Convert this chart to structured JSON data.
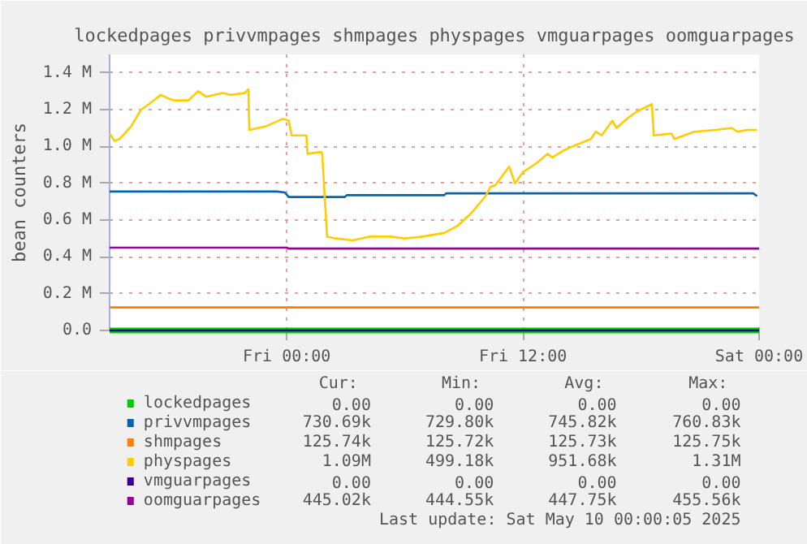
{
  "chart_data": {
    "type": "line",
    "title": "lockedpages privvmpages shmpages physpages vmguarpages oomguarpages",
    "ylabel": "bean counters",
    "xlim": [
      "2025-05-08T15:00",
      "2025-05-10T00:00"
    ],
    "xticks": [
      {
        "value": "2025-05-09T00:00",
        "label": "Fri 00:00"
      },
      {
        "value": "2025-05-09T12:00",
        "label": "Fri 12:00"
      },
      {
        "value": "2025-05-10T00:00",
        "label": "Sat 00:00"
      }
    ],
    "ylim": [
      0,
      1500000
    ],
    "yticks": [
      {
        "value": 0,
        "label": "0.0"
      },
      {
        "value": 200000,
        "label": "0.2 M"
      },
      {
        "value": 400000,
        "label": "0.4 M"
      },
      {
        "value": 600000,
        "label": "0.6 M"
      },
      {
        "value": 800000,
        "label": "0.8 M"
      },
      {
        "value": 1000000,
        "label": "1.0 M"
      },
      {
        "value": 1200000,
        "label": "1.2 M"
      },
      {
        "value": 1400000,
        "label": "1.4 M"
      }
    ],
    "grid": true,
    "legend": "bottom",
    "series": [
      {
        "name": "lockedpages",
        "color": "#00cc00",
        "x": [
          "2025-05-08T15:00",
          "2025-05-10T00:00"
        ],
        "values": [
          0,
          0
        ]
      },
      {
        "name": "privvmpages",
        "color": "#0066b3",
        "x": [
          "2025-05-08T15:00",
          "2025-05-08T23:30",
          "2025-05-08T23:54",
          "2025-05-09T00:06",
          "2025-05-09T02:57",
          "2025-05-09T03:03",
          "2025-05-09T08:00",
          "2025-05-09T08:06",
          "2025-05-09T23:42",
          "2025-05-09T23:54"
        ],
        "values": [
          755000,
          755000,
          750000,
          725000,
          725000,
          735000,
          735000,
          745000,
          745000,
          730000
        ]
      },
      {
        "name": "shmpages",
        "color": "#ff7f00",
        "x": [
          "2025-05-08T15:00",
          "2025-05-10T00:00"
        ],
        "values": [
          125000,
          125000
        ]
      },
      {
        "name": "physpages",
        "color": "#ffcc00",
        "x": [
          "2025-05-08T15:00",
          "2025-05-08T15:15",
          "2025-05-08T15:30",
          "2025-05-08T16:06",
          "2025-05-08T16:36",
          "2025-05-08T17:00",
          "2025-05-08T17:36",
          "2025-05-08T18:00",
          "2025-05-08T18:18",
          "2025-05-08T19:00",
          "2025-05-08T19:30",
          "2025-05-08T19:54",
          "2025-05-08T20:45",
          "2025-05-08T21:09",
          "2025-05-08T21:51",
          "2025-05-08T22:03",
          "2025-05-08T22:06",
          "2025-05-08T22:57",
          "2025-05-08T23:48",
          "2025-05-09T00:06",
          "2025-05-09T00:15",
          "2025-05-09T01:00",
          "2025-05-09T01:03",
          "2025-05-09T01:45",
          "2025-05-09T01:48",
          "2025-05-09T02:03",
          "2025-05-09T02:30",
          "2025-05-09T03:21",
          "2025-05-09T04:12",
          "2025-05-09T05:18",
          "2025-05-09T06:00",
          "2025-05-09T06:54",
          "2025-05-09T08:00",
          "2025-05-09T08:42",
          "2025-05-09T09:24",
          "2025-05-09T10:06",
          "2025-05-09T10:21",
          "2025-05-09T10:36",
          "2025-05-09T11:18",
          "2025-05-09T11:36",
          "2025-05-09T12:00",
          "2025-05-09T12:42",
          "2025-05-09T13:15",
          "2025-05-09T13:30",
          "2025-05-09T14:06",
          "2025-05-09T14:45",
          "2025-05-09T15:27",
          "2025-05-09T15:42",
          "2025-05-09T16:00",
          "2025-05-09T16:33",
          "2025-05-09T16:45",
          "2025-05-09T17:24",
          "2025-05-09T17:48",
          "2025-05-09T18:33",
          "2025-05-09T18:39",
          "2025-05-09T19:33",
          "2025-05-09T19:42",
          "2025-05-09T20:42",
          "2025-05-09T21:48",
          "2025-05-09T22:36",
          "2025-05-09T22:54",
          "2025-05-09T23:24",
          "2025-05-09T23:54"
        ],
        "values": [
          1070000,
          1030000,
          1040000,
          1110000,
          1200000,
          1230000,
          1280000,
          1260000,
          1250000,
          1250000,
          1300000,
          1270000,
          1290000,
          1280000,
          1290000,
          1310000,
          1090000,
          1110000,
          1150000,
          1140000,
          1060000,
          1060000,
          960000,
          970000,
          960000,
          510000,
          500000,
          490000,
          510000,
          510000,
          500000,
          510000,
          530000,
          570000,
          640000,
          730000,
          780000,
          790000,
          890000,
          800000,
          860000,
          910000,
          960000,
          940000,
          980000,
          1010000,
          1040000,
          1080000,
          1060000,
          1140000,
          1100000,
          1160000,
          1190000,
          1230000,
          1060000,
          1070000,
          1040000,
          1080000,
          1090000,
          1100000,
          1080000,
          1090000,
          1090000
        ]
      },
      {
        "name": "vmguarpages",
        "color": "#330099",
        "x": [
          "2025-05-08T15:00",
          "2025-05-10T00:00"
        ],
        "values": [
          0,
          0
        ]
      },
      {
        "name": "oomguarpages",
        "color": "#990099",
        "x": [
          "2025-05-08T15:00",
          "2025-05-09T00:00",
          "2025-05-09T00:06",
          "2025-05-10T00:00"
        ],
        "values": [
          450000,
          450000,
          445000,
          445000
        ]
      }
    ],
    "annotations": [
      "Cur:",
      "Min:",
      "Avg:",
      "Max:",
      "0.00",
      "0.00",
      "0.00",
      "0.00",
      "730.69k",
      "729.80k",
      "745.82k",
      "760.83k",
      "125.74k",
      "125.72k",
      "125.73k",
      "125.75k",
      "1.09M",
      "499.18k",
      "951.68k",
      "1.31M",
      "0.00",
      "0.00",
      "0.00",
      "0.00",
      "445.02k",
      "444.55k",
      "447.75k",
      "455.56k",
      "Last update: Sat May 10 00:00:05 2025"
    ]
  }
}
